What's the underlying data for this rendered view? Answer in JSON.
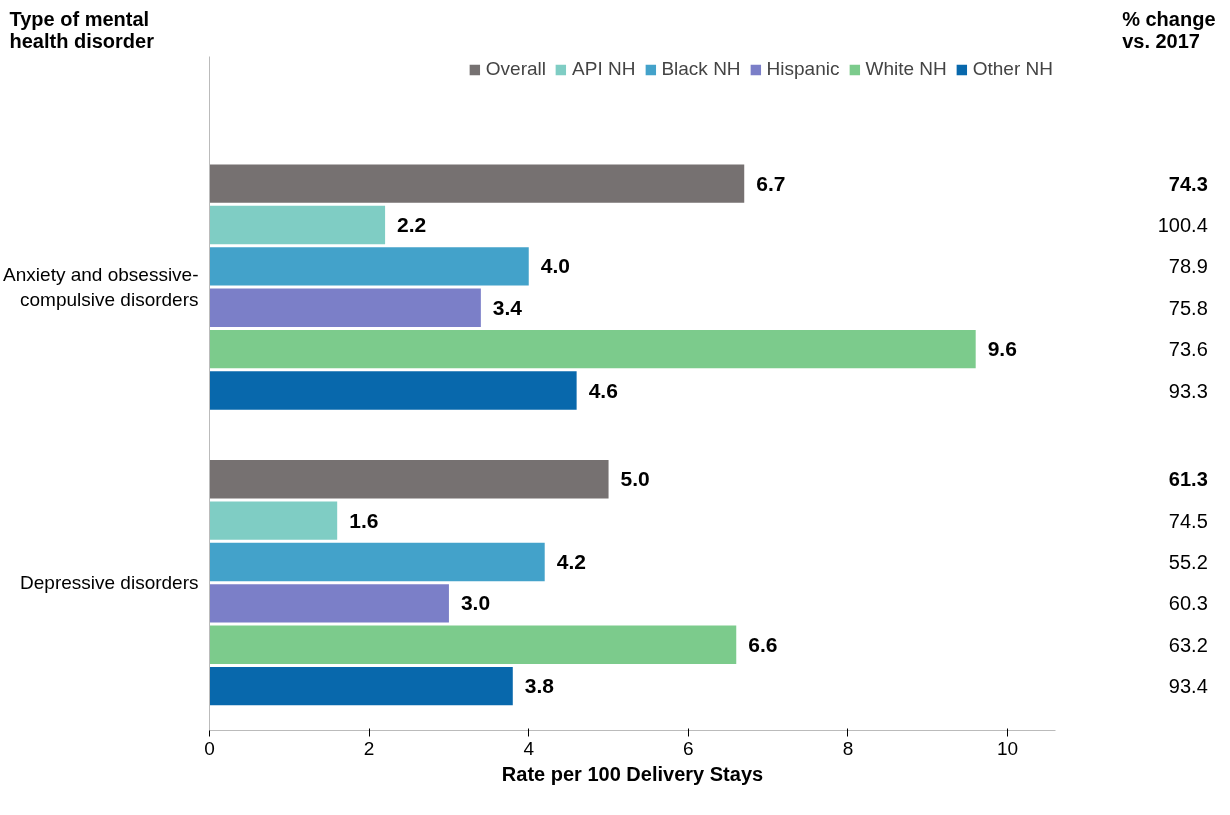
{
  "chart_data": {
    "type": "bar",
    "orientation": "horizontal",
    "xlabel": "Rate per 100 Delivery Stays",
    "categories": [
      "Anxiety and obsessive-compulsive disorders",
      "Depressive disorders"
    ],
    "series": [
      {
        "name": "Overall",
        "color": "#767171",
        "values": [
          6.7,
          5.0
        ],
        "value_labels": [
          "6.7",
          "5.0"
        ]
      },
      {
        "name": "API NH",
        "color": "#7fcdc4",
        "values": [
          2.2,
          1.6
        ],
        "value_labels": [
          "2.2",
          "1.6"
        ]
      },
      {
        "name": "Black NH",
        "color": "#43a2ca",
        "values": [
          4.0,
          4.2
        ],
        "value_labels": [
          "4.0",
          "4.2"
        ]
      },
      {
        "name": "Hispanic",
        "color": "#7b7fc8",
        "values": [
          3.4,
          3.0
        ],
        "value_labels": [
          "3.4",
          "3.0"
        ]
      },
      {
        "name": "White NH",
        "color": "#7ccb8c",
        "values": [
          9.6,
          6.6
        ],
        "value_labels": [
          "9.6",
          "6.6"
        ]
      },
      {
        "name": "Other NH",
        "color": "#0868ac",
        "values": [
          4.6,
          3.8
        ],
        "value_labels": [
          "4.6",
          "3.8"
        ]
      }
    ],
    "xlim": [
      0,
      10.6
    ],
    "xticks": [
      0,
      2,
      4,
      6,
      8,
      10
    ],
    "legend": "top",
    "grid": false,
    "annotations": [
      "Type of mental health disorder",
      "% change vs. 2017",
      "74.3",
      "100.4",
      "78.9",
      "75.8",
      "73.6",
      "93.3",
      "61.3",
      "74.5",
      "55.2",
      "60.3",
      "63.2",
      "93.4"
    ]
  }
}
